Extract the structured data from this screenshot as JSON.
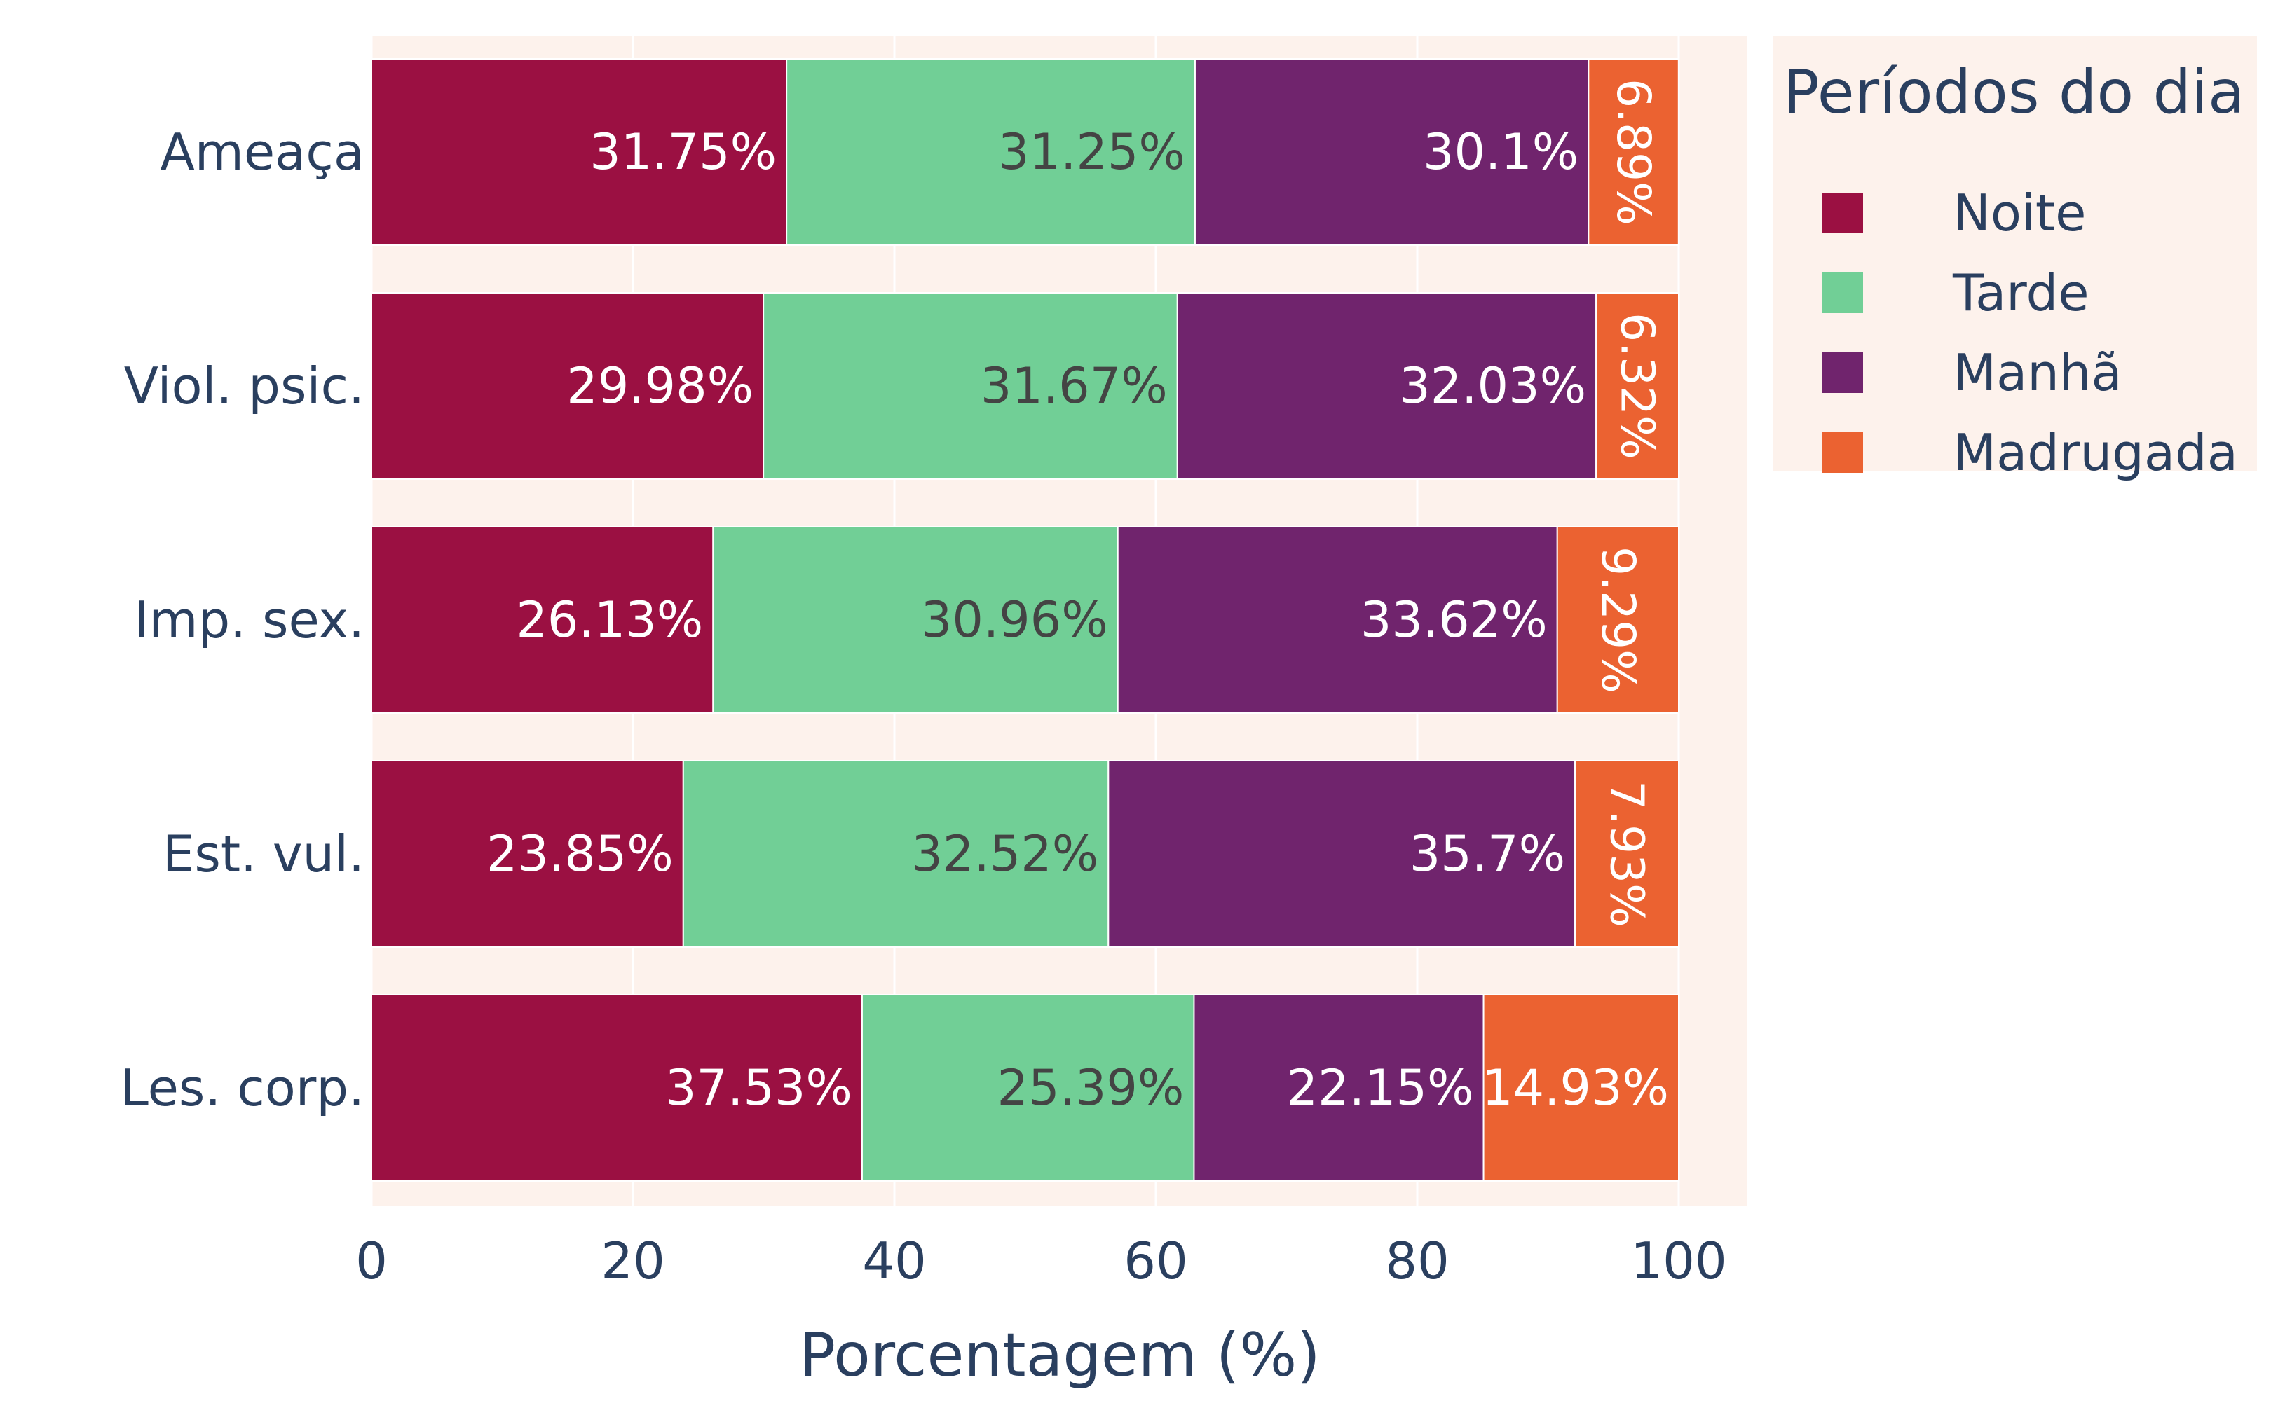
{
  "chart_data": {
    "type": "bar",
    "orientation": "horizontal",
    "stacked": true,
    "categories": [
      "Ameaça",
      "Viol. psic.",
      "Imp. sex.",
      "Est. vul.",
      "Les. corp."
    ],
    "series": [
      {
        "name": "Noite",
        "color": "#9b1042",
        "label_color": "#ffffff",
        "values": [
          31.75,
          29.98,
          26.13,
          23.85,
          37.53
        ],
        "labels": [
          "31.75%",
          "29.98%",
          "26.13%",
          "23.85%",
          "37.53%"
        ]
      },
      {
        "name": "Tarde",
        "color": "#71cf96",
        "label_color": "#444444",
        "values": [
          31.25,
          31.67,
          30.96,
          32.52,
          25.39
        ],
        "labels": [
          "31.25%",
          "31.67%",
          "30.96%",
          "32.52%",
          "25.39%"
        ]
      },
      {
        "name": "Manhã",
        "color": "#70246d",
        "label_color": "#ffffff",
        "values": [
          30.1,
          32.03,
          33.62,
          35.7,
          22.15
        ],
        "labels": [
          "30.1%",
          "32.03%",
          "33.62%",
          "35.7%",
          "22.15%"
        ]
      },
      {
        "name": "Madrugada",
        "color": "#eb6231",
        "label_color": "#ffffff",
        "values": [
          6.89,
          6.32,
          9.29,
          7.93,
          14.93
        ],
        "labels": [
          "6.89%",
          "6.32%",
          "9.29%",
          "7.93%",
          "14.93%"
        ]
      }
    ],
    "xlabel": "Porcentagem (%)",
    "ylabel": "",
    "xlim": [
      0,
      105
    ],
    "xticks": [
      0,
      20,
      40,
      60,
      80,
      100
    ],
    "grid": true,
    "plot_background": "#fdf2ec",
    "legend_title": "Períodos do dia",
    "legend_position": "top-right"
  }
}
